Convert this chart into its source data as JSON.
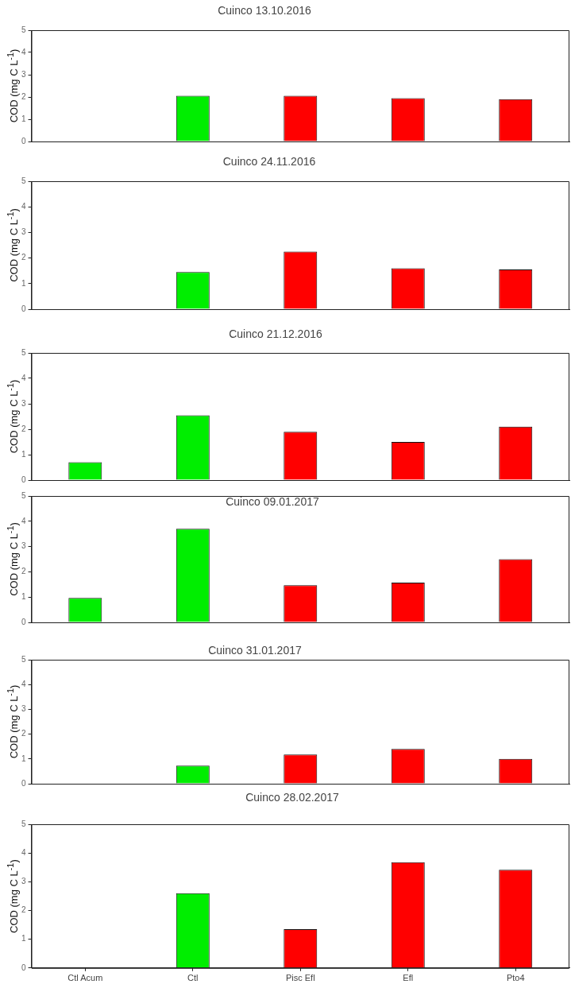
{
  "chart_data": [
    {
      "type": "bar",
      "title": "Cuinco 13.10.2016",
      "ylabel": "COD (mg C L$^{-1}$)",
      "categories": [
        null,
        null,
        null,
        null,
        null
      ],
      "values": [
        null,
        2.05,
        2.05,
        1.95,
        1.9
      ],
      "colors": [
        "#00ee00",
        "#00ee00",
        "#ff0000",
        "#ff0000",
        "#ff0000"
      ],
      "ylim": [
        0,
        5
      ],
      "yticks": [
        0,
        1,
        2,
        3,
        4,
        5
      ],
      "tick_labels": "y"
    },
    {
      "type": "bar",
      "title": "Cuinco 24.11.2016",
      "ylabel": "COD (mg C L$^{-1}$)",
      "categories": [
        null,
        null,
        null,
        null,
        null
      ],
      "values": [
        null,
        1.45,
        2.25,
        1.6,
        1.55
      ],
      "colors": [
        "#00ee00",
        "#00ee00",
        "#ff0000",
        "#ff0000",
        "#ff0000"
      ],
      "ylim": [
        0,
        5
      ],
      "yticks": [
        0,
        1,
        2,
        3,
        4,
        5
      ],
      "tick_labels": "y"
    },
    {
      "type": "bar",
      "title": "Cuinco 21.12.2016",
      "ylabel": "COD (mg C L$^{-1}$)",
      "categories": [
        null,
        null,
        null,
        null,
        null
      ],
      "values": [
        0.7,
        2.55,
        1.9,
        1.5,
        2.1
      ],
      "colors": [
        "#00ee00",
        "#00ee00",
        "#ff0000",
        "#ff0000",
        "#ff0000"
      ],
      "ylim": [
        0,
        5
      ],
      "yticks": [
        0,
        1,
        2,
        3,
        4,
        5
      ],
      "tick_labels": "y"
    },
    {
      "type": "bar",
      "title": "Cuinco 09.01.2017",
      "ylabel": "COD (mg C L$^{-1}$)",
      "categories": [
        null,
        null,
        null,
        null,
        null
      ],
      "values": [
        0.97,
        3.7,
        1.47,
        1.57,
        2.5
      ],
      "colors": [
        "#00ee00",
        "#00ee00",
        "#ff0000",
        "#ff0000",
        "#ff0000"
      ],
      "ylim": [
        0,
        5
      ],
      "yticks": [
        0,
        1,
        2,
        3,
        4,
        5
      ],
      "tick_labels": "y"
    },
    {
      "type": "bar",
      "title": "Cuinco 31.01.2017",
      "ylabel": "COD (mg C L$^{-1}$)",
      "categories": [
        null,
        null,
        null,
        null,
        null
      ],
      "values": [
        null,
        0.73,
        1.18,
        1.4,
        1.0
      ],
      "colors": [
        "#00ee00",
        "#00ee00",
        "#ff0000",
        "#ff0000",
        "#ff0000"
      ],
      "ylim": [
        0,
        5
      ],
      "yticks": [
        0,
        1,
        2,
        3,
        4,
        5
      ],
      "tick_labels": "y"
    },
    {
      "type": "bar",
      "title": "Cuinco 28.02.2017",
      "ylabel": "COD (mg C L$^{-1}$)",
      "categories": [
        "Ctl Acum",
        "Ctl",
        "Pisc Efl",
        "Efl",
        "Pto4"
      ],
      "values": [
        null,
        2.6,
        1.35,
        3.68,
        3.42
      ],
      "colors": [
        "#00ee00",
        "#00ee00",
        "#ff0000",
        "#ff0000",
        "#ff0000"
      ],
      "ylim": [
        0,
        5
      ],
      "yticks": [
        0,
        1,
        2,
        3,
        4,
        5
      ]
    }
  ]
}
